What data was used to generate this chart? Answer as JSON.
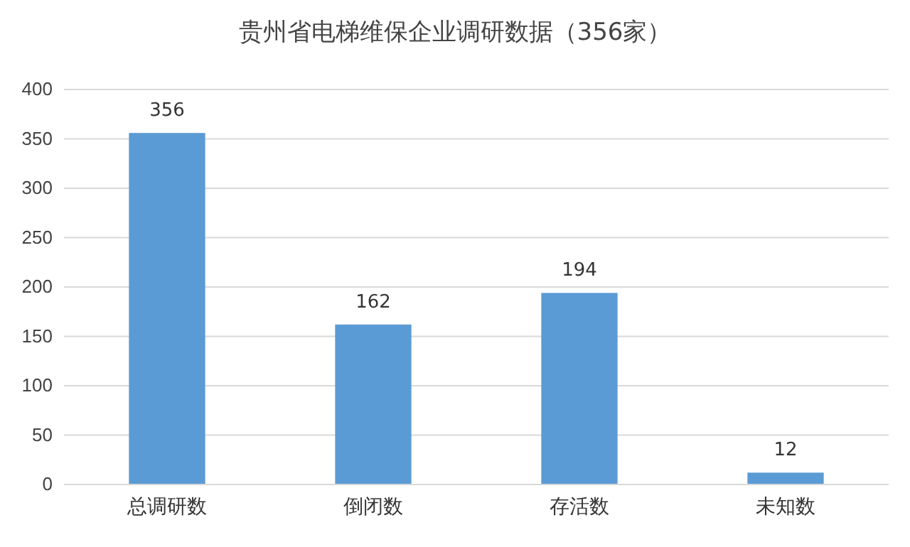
{
  "chart_data": {
    "type": "bar",
    "title": "贵州省电梯维保企业调研数据（356家）",
    "categories": [
      "总调研数",
      "倒闭数",
      "存活数",
      "未知数"
    ],
    "values": [
      356,
      162,
      194,
      12
    ],
    "color": "#5b9bd5",
    "data_labels": true,
    "ylim": [
      0,
      400
    ],
    "yticks": [
      0,
      50,
      100,
      150,
      200,
      250,
      300,
      350,
      400
    ],
    "grid": "y"
  }
}
